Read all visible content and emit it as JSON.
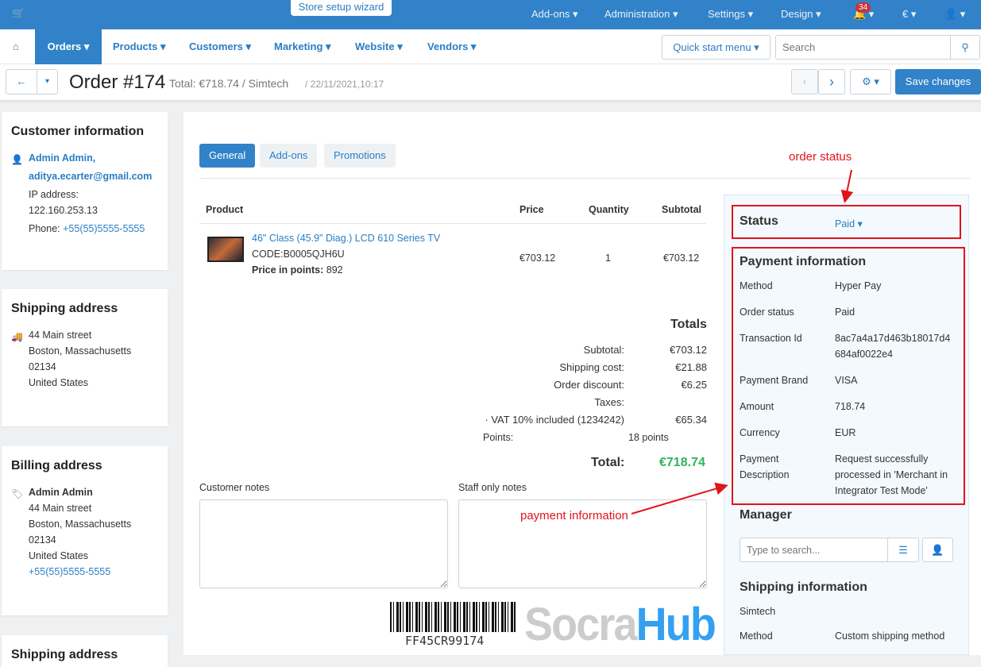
{
  "topbar": {
    "wizard": "Store setup wizard",
    "menu": [
      "Add-ons",
      "Administration",
      "Settings",
      "Design"
    ],
    "notifications": "34",
    "currency": "€"
  },
  "nav": {
    "items": [
      "Orders",
      "Products",
      "Customers",
      "Marketing",
      "Website",
      "Vendors"
    ],
    "quick_start": "Quick start menu",
    "search_placeholder": "Search"
  },
  "header": {
    "title": "Order #174",
    "subtitle": "Total: €718.74 / Simtech",
    "date": "/ 22/11/2021,10:17",
    "save": "Save changes"
  },
  "customer": {
    "title": "Customer information",
    "name": "Admin Admin,",
    "email": "aditya.ecarter@gmail.com",
    "ip_label": "IP address:",
    "ip": "122.160.253.13",
    "phone_label": "Phone:",
    "phone": "+55(55)5555-5555"
  },
  "shipping": {
    "title": "Shipping address",
    "lines": [
      "44 Main street",
      "Boston, Massachusetts",
      "02134",
      "United States"
    ]
  },
  "billing": {
    "title": "Billing address",
    "name": "Admin Admin",
    "lines": [
      "44 Main street",
      "Boston, Massachusetts",
      "02134",
      "United States"
    ],
    "phone": "+55(55)5555-5555"
  },
  "shipping2_title": "Shipping address",
  "tabs": [
    "General",
    "Add-ons",
    "Promotions"
  ],
  "table": {
    "headers": [
      "Product",
      "Price",
      "Quantity",
      "Subtotal"
    ],
    "product": {
      "name": "46\" Class (45.9\" Diag.) LCD 610 Series TV",
      "code": "CODE:B0005QJH6U",
      "points_label": "Price in points:",
      "points": "892",
      "price": "€703.12",
      "qty": "1",
      "subtotal": "€703.12"
    }
  },
  "totals": {
    "title": "Totals",
    "rows": [
      {
        "l": "Subtotal:",
        "v": "€703.12"
      },
      {
        "l": "Shipping cost:",
        "v": "€21.88"
      },
      {
        "l": "Order discount:",
        "v": "€6.25"
      },
      {
        "l": "Taxes:",
        "v": ""
      },
      {
        "l": "· VAT 10% included (1234242)",
        "v": "€65.34"
      }
    ],
    "points_label": "Points:",
    "points": "18 points",
    "total_label": "Total:",
    "total": "€718.74"
  },
  "notes": {
    "customer": "Customer notes",
    "staff": "Staff only notes"
  },
  "barcode": "FF45CR99174",
  "status": {
    "label": "Status",
    "value": "Paid"
  },
  "payment": {
    "title": "Payment information",
    "rows": [
      {
        "l": "Method",
        "v": "Hyper Pay"
      },
      {
        "l": "Order status",
        "v": "Paid"
      },
      {
        "l": "Transaction Id",
        "v": "8ac7a4a17d463b18017d4684af0022e4"
      },
      {
        "l": "Payment Brand",
        "v": "VISA"
      },
      {
        "l": "Amount",
        "v": "718.74"
      },
      {
        "l": "Currency",
        "v": "EUR"
      },
      {
        "l": "Payment Description",
        "v": "Request successfully processed in 'Merchant in Integrator Test Mode'"
      }
    ]
  },
  "manager": {
    "title": "Manager",
    "placeholder": "Type to search..."
  },
  "shipinfo": {
    "title": "Shipping information",
    "carrier": "Simtech",
    "method_label": "Method",
    "method": "Custom shipping method"
  },
  "annotations": {
    "status": "order status",
    "payment": "payment information"
  },
  "watermark": {
    "a": "Socra",
    "b": "Hub"
  },
  "colors": {
    "primary": "#3182c8",
    "annotation": "#e1141c",
    "total": "#2fb35a"
  }
}
